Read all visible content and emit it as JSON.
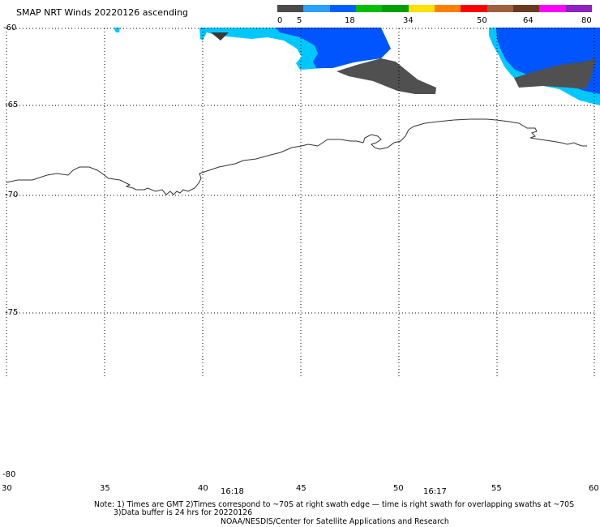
{
  "title": "SMAP NRT Winds 20220126 ascending",
  "colorbar": {
    "labels": [
      "0",
      "5",
      "18",
      "34",
      "50",
      "64",
      "80"
    ],
    "segments": [
      "#4a4a4a",
      "#2aa0ff",
      "#0060ff",
      "#00c000",
      "#00a000",
      "#ffe000",
      "#ff8000",
      "#ff0000",
      "#a06040",
      "#6a3a20",
      "#ff00ff",
      "#9020c0"
    ]
  },
  "lat_labels": [
    "-60",
    "-65",
    "-70",
    "-75",
    "-80"
  ],
  "lon_labels": [
    "30",
    "35",
    "40",
    "45",
    "50",
    "55",
    "60"
  ],
  "time_labels": [
    "16:18",
    "16:17"
  ],
  "notes": {
    "line1": "Note: 1) Times are GMT 2)Times correspond to ~70S at right swath edge — time is right swath for overlapping swaths at ~70S",
    "line2": "3)Data buffer is 24 hrs for 20220126",
    "line3": "NOAA/NESDIS/Center for Satellite Applications and Research"
  },
  "colors": {
    "coast": "#000000",
    "grid": "#000000",
    "wind_light": "#00c8ff",
    "wind_mid": "#0055ff",
    "wind_calm": "#505050"
  }
}
